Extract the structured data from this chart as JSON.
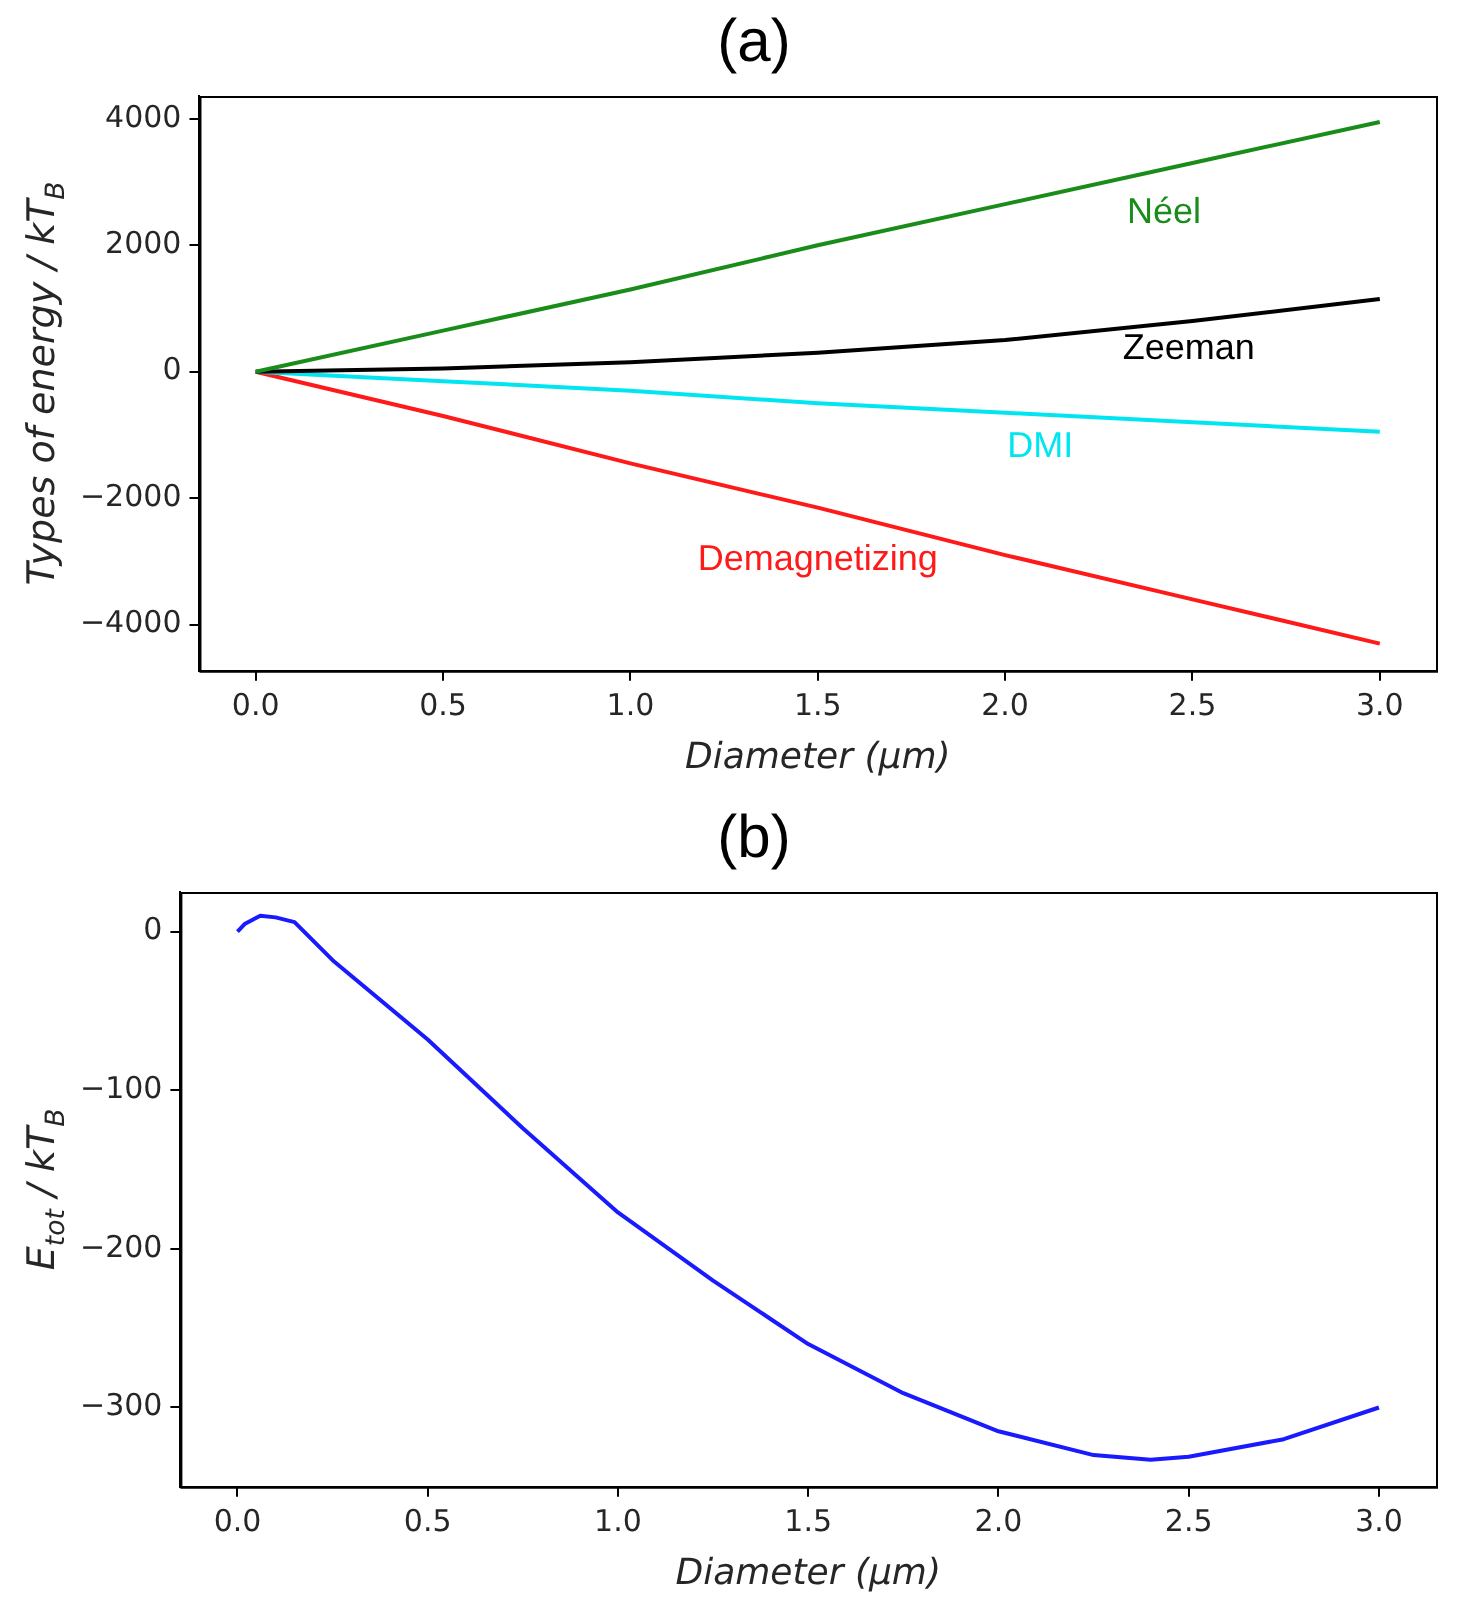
{
  "chart_data": [
    {
      "type": "line",
      "title": "(a)",
      "xlabel": "Diameter (μm)",
      "ylabel": "Types of energy / kT$_{B}$",
      "x": [
        0,
        0.5,
        1,
        1.5,
        2,
        2.5,
        3
      ],
      "series": [
        {
          "name": "Néel",
          "color": "#1a8c1a",
          "values": [
            0,
            650,
            1300,
            2000,
            2650,
            3300,
            3950
          ]
        },
        {
          "name": "Zeeman",
          "color": "#000000",
          "values": [
            0,
            50,
            150,
            300,
            500,
            800,
            1150
          ]
        },
        {
          "name": "DMI",
          "color": "#00e5f0",
          "values": [
            0,
            -150,
            -300,
            -500,
            -650,
            -800,
            -950
          ]
        },
        {
          "name": "Demagnetizing",
          "color": "#ff1a1a",
          "values": [
            0,
            -700,
            -1450,
            -2150,
            -2900,
            -3600,
            -4300
          ]
        }
      ],
      "xlim": [
        -0.15,
        3.15
      ],
      "xticks": [
        {
          "value": 0,
          "label": "0.0"
        },
        {
          "value": 0.5,
          "label": "0.5"
        },
        {
          "value": 1,
          "label": "1.0"
        },
        {
          "value": 1.5,
          "label": "1.5"
        },
        {
          "value": 2,
          "label": "2.0"
        },
        {
          "value": 2.5,
          "label": "2.5"
        },
        {
          "value": 3,
          "label": "3.0"
        }
      ],
      "ylim": [
        -4730,
        4360
      ],
      "yticks": [
        {
          "value": -4000,
          "label": "−4000"
        },
        {
          "value": -2000,
          "label": "−2000"
        },
        0,
        2000,
        4000
      ],
      "grid": false,
      "legend": false,
      "marker": "none",
      "line_style": "solid"
    },
    {
      "type": "line",
      "title": "(b)",
      "xlabel": "Diameter (μm)",
      "ylabel": "E$_{tot}$ / kT$_{B}$",
      "x": [
        0,
        0.02,
        0.06,
        0.1,
        0.15,
        0.25,
        0.5,
        0.75,
        1,
        1.25,
        1.5,
        1.75,
        2,
        2.25,
        2.4,
        2.5,
        2.75,
        3
      ],
      "series": [
        {
          "color": "#1a1aff",
          "values": [
            0,
            5,
            10,
            9,
            6,
            -18,
            -68,
            -124,
            -177,
            -220,
            -260,
            -291,
            -315,
            -330,
            -333,
            -331,
            -320,
            -300
          ]
        }
      ],
      "xlim": [
        -0.15,
        3.15
      ],
      "xticks": [
        {
          "value": 0,
          "label": "0.0"
        },
        {
          "value": 0.5,
          "label": "0.5"
        },
        {
          "value": 1,
          "label": "1.0"
        },
        {
          "value": 1.5,
          "label": "1.5"
        },
        {
          "value": 2,
          "label": "2.0"
        },
        {
          "value": 2.5,
          "label": "2.5"
        },
        {
          "value": 3,
          "label": "3.0"
        }
      ],
      "ylim": [
        -350,
        25
      ],
      "yticks": [
        {
          "value": -300,
          "label": "−300"
        },
        {
          "value": -200,
          "label": "−200"
        },
        {
          "value": -100,
          "label": "−100"
        },
        0
      ],
      "grid": false,
      "legend": false,
      "marker": "none",
      "line_style": "solid"
    }
  ]
}
